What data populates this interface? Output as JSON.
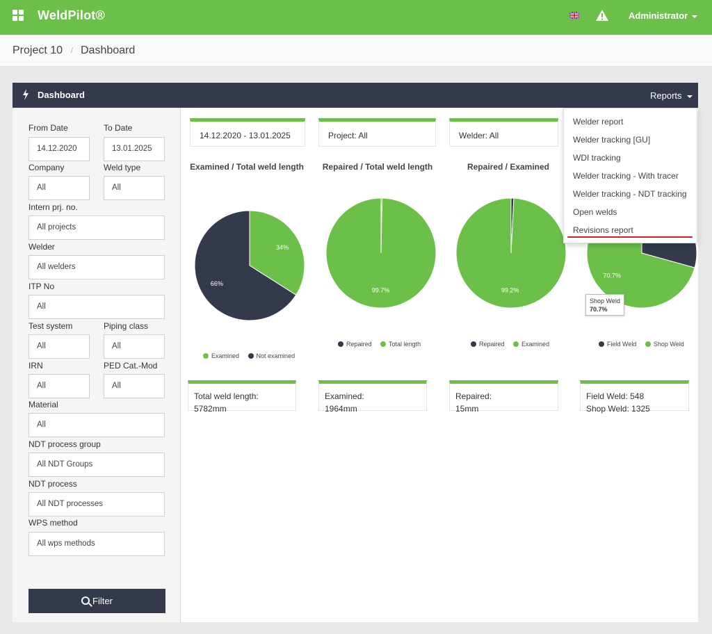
{
  "header": {
    "brand": "WeldPilot®",
    "user": "Administrator",
    "icons": [
      "apps-icon",
      "uk-flag-icon",
      "warning-icon"
    ]
  },
  "breadcrumb": {
    "project": "Project 10",
    "page": "Dashboard"
  },
  "panel": {
    "title": "Dashboard",
    "reports_label": "Reports"
  },
  "reports_menu": {
    "items": [
      "Welder report",
      "Welder tracking [GU]",
      "WDI tracking",
      "Welder tracking - With tracer",
      "Welder tracking - NDT tracking",
      "Open welds",
      "Revisions report"
    ]
  },
  "filters": {
    "from_date": {
      "label": "From Date",
      "value": "14.12.2020"
    },
    "to_date": {
      "label": "To Date",
      "value": "13.01.2025"
    },
    "company": {
      "label": "Company",
      "value": "All"
    },
    "weld_type": {
      "label": "Weld type",
      "value": "All"
    },
    "intern_prj": {
      "label": "Intern prj. no.",
      "value": "All projects"
    },
    "welder": {
      "label": "Welder",
      "value": "All welders"
    },
    "itp_no": {
      "label": "ITP No",
      "value": "All"
    },
    "test_system": {
      "label": "Test system",
      "value": "All"
    },
    "piping_class": {
      "label": "Piping class",
      "value": "All"
    },
    "irn": {
      "label": "IRN",
      "value": "All"
    },
    "ped_cat": {
      "label": "PED Cat.-Mod",
      "value": "All"
    },
    "material": {
      "label": "Material",
      "value": "All"
    },
    "ndt_group": {
      "label": "NDT process group",
      "value": "All NDT Groups"
    },
    "ndt_process": {
      "label": "NDT process",
      "value": "All NDT processes"
    },
    "wps_method": {
      "label": "WPS method",
      "value": "All wps methods"
    },
    "filter_button": "Filter"
  },
  "summary_cards": {
    "date_range": "14.12.2020 - 13.01.2025",
    "project": "Project: All",
    "welder": "Welder: All"
  },
  "colors": {
    "green": "#6cc04a",
    "dark": "#343a4b"
  },
  "chart_data": [
    {
      "type": "pie",
      "title": "Examined / Total weld length",
      "slices": [
        {
          "name": "Examined",
          "value": 34,
          "label": "34%",
          "color": "#6cc04a"
        },
        {
          "name": "Not examined",
          "value": 66,
          "label": "66%",
          "color": "#343a4b"
        }
      ],
      "legend": [
        "Examined",
        "Not examined"
      ]
    },
    {
      "type": "pie",
      "title": "Repaired / Total weld length",
      "slices": [
        {
          "name": "Repaired",
          "value": 0.3,
          "label": "",
          "color": "#343a4b"
        },
        {
          "name": "Total length",
          "value": 99.7,
          "label": "99.7%",
          "color": "#6cc04a"
        }
      ],
      "legend": [
        "Repaired",
        "Total length"
      ]
    },
    {
      "type": "pie",
      "title": "Repaired / Examined",
      "slices": [
        {
          "name": "Repaired",
          "value": 0.8,
          "label": "",
          "color": "#343a4b"
        },
        {
          "name": "Examined",
          "value": 99.2,
          "label": "99.2%",
          "color": "#6cc04a"
        }
      ],
      "legend": [
        "Repaired",
        "Examined"
      ]
    },
    {
      "type": "pie",
      "title": "",
      "slices": [
        {
          "name": "Field Weld",
          "value": 29.3,
          "label": "",
          "color": "#343a4b"
        },
        {
          "name": "Shop Weld",
          "value": 70.7,
          "label": "70.7%",
          "color": "#6cc04a"
        }
      ],
      "legend": [
        "Field Weld",
        "Shop Weld"
      ],
      "tooltip": {
        "name": "Shop Weld",
        "value": "70.7%"
      }
    }
  ],
  "totals": {
    "total_weld": {
      "label": "Total weld length:",
      "value": "5782mm"
    },
    "examined": {
      "label": "Examined:",
      "value": "1964mm"
    },
    "repaired": {
      "label": "Repaired:",
      "value": "15mm"
    },
    "field_weld": "Field Weld: 548",
    "shop_weld": "Shop Weld: 1325"
  }
}
